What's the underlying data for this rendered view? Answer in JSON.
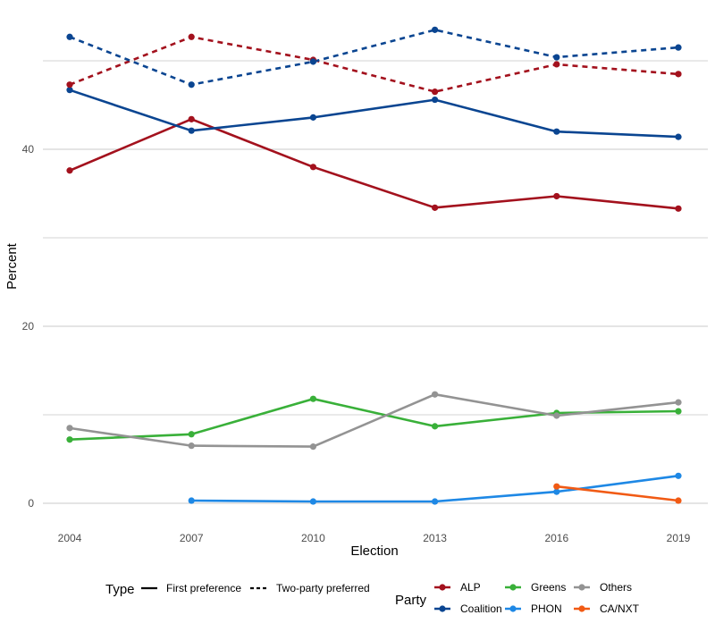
{
  "chart_data": {
    "type": "line",
    "xlabel": "Election",
    "ylabel": "Percent",
    "x": [
      2004,
      2007,
      2010,
      2013,
      2016,
      2019
    ],
    "x_tick_labels": [
      "2004",
      "2007",
      "2010",
      "2013",
      "2016",
      "2019"
    ],
    "ylim": [
      -3,
      55
    ],
    "y_ticks": [
      0,
      20,
      40
    ],
    "y_tick_labels": [
      "0",
      "20",
      "40"
    ],
    "grid": true,
    "legend_placement": "bottom",
    "series": [
      {
        "name": "ALP",
        "type": "First preference",
        "color": "#a3111d",
        "x": [
          2004,
          2007,
          2010,
          2013,
          2016,
          2019
        ],
        "values": [
          37.6,
          43.4,
          38.0,
          33.4,
          34.7,
          33.3
        ]
      },
      {
        "name": "Coalition",
        "type": "First preference",
        "color": "#0a4591",
        "x": [
          2004,
          2007,
          2010,
          2013,
          2016,
          2019
        ],
        "values": [
          46.7,
          42.1,
          43.6,
          45.6,
          42.0,
          41.4
        ]
      },
      {
        "name": "Greens",
        "type": "First preference",
        "color": "#39b039",
        "x": [
          2004,
          2007,
          2010,
          2013,
          2016,
          2019
        ],
        "values": [
          7.2,
          7.8,
          11.8,
          8.7,
          10.2,
          10.4
        ]
      },
      {
        "name": "Others",
        "type": "First preference",
        "color": "#939393",
        "x": [
          2004,
          2007,
          2010,
          2013,
          2016,
          2019
        ],
        "values": [
          8.5,
          6.5,
          6.4,
          12.3,
          9.9,
          11.4
        ]
      },
      {
        "name": "PHON",
        "type": "First preference",
        "color": "#1e88e5",
        "x": [
          2007,
          2010,
          2013,
          2016,
          2019
        ],
        "values": [
          0.3,
          0.2,
          0.2,
          1.3,
          3.1
        ]
      },
      {
        "name": "CA/NXT",
        "type": "First preference",
        "color": "#f15a14",
        "x": [
          2016,
          2019
        ],
        "values": [
          1.9,
          0.3
        ]
      },
      {
        "name": "ALP",
        "type": "Two-party preferred",
        "color": "#a3111d",
        "x": [
          2004,
          2007,
          2010,
          2013,
          2016,
          2019
        ],
        "values": [
          47.3,
          52.7,
          50.1,
          46.5,
          49.6,
          48.5
        ]
      },
      {
        "name": "Coalition",
        "type": "Two-party preferred",
        "color": "#0a4591",
        "x": [
          2004,
          2007,
          2010,
          2013,
          2016,
          2019
        ],
        "values": [
          52.7,
          47.3,
          49.9,
          53.5,
          50.4,
          51.5
        ]
      }
    ]
  },
  "legend": {
    "type_title": "Type",
    "type_items": [
      {
        "label": "First preference",
        "dash": "solid"
      },
      {
        "label": "Two-party preferred",
        "dash": "dashed"
      }
    ],
    "party_title": "Party",
    "party_items": [
      {
        "label": "ALP",
        "color": "#a3111d"
      },
      {
        "label": "Coalition",
        "color": "#0a4591"
      },
      {
        "label": "Greens",
        "color": "#39b039"
      },
      {
        "label": "PHON",
        "color": "#1e88e5"
      },
      {
        "label": "Others",
        "color": "#939393"
      },
      {
        "label": "CA/NXT",
        "color": "#f15a14"
      }
    ]
  }
}
